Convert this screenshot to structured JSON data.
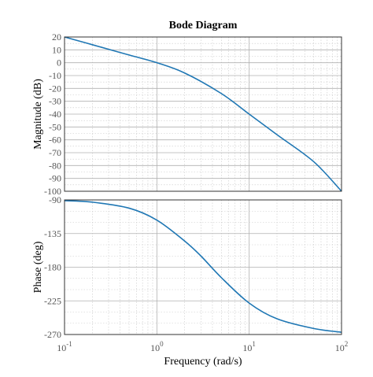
{
  "chart_data": {
    "type": "line",
    "title": "Bode Diagram",
    "xlabel": "Frequency  (rad/s)",
    "xscale": "log",
    "xlim": [
      0.1,
      100
    ],
    "x_ticks": [
      {
        "base": "10",
        "exp": "-1",
        "value": 0.1
      },
      {
        "base": "10",
        "exp": "0",
        "value": 1
      },
      {
        "base": "10",
        "exp": "1",
        "value": 10
      },
      {
        "base": "10",
        "exp": "2",
        "value": 100
      }
    ],
    "grid": true,
    "color": "#1f77b4",
    "panels": [
      {
        "ylabel": "Magnitude (dB)",
        "ylim": [
          -100,
          20
        ],
        "yticks": [
          "20",
          "10",
          "0",
          "-10",
          "-20",
          "-30",
          "-40",
          "-50",
          "-60",
          "-70",
          "-80",
          "-90",
          "-100"
        ],
        "x": [
          0.1,
          0.2,
          0.5,
          1,
          2,
          5,
          10,
          20,
          50,
          100
        ],
        "values": [
          20,
          14,
          6,
          0,
          -8,
          -24,
          -40,
          -56,
          -77,
          -100
        ]
      },
      {
        "ylabel": "Phase (deg)",
        "ylim": [
          -270,
          -90
        ],
        "yticks": [
          "-90",
          "-135",
          "-180",
          "-225",
          "-270"
        ],
        "x": [
          0.1,
          0.2,
          0.5,
          1,
          2,
          3,
          5,
          10,
          20,
          50,
          100
        ],
        "values": [
          -91,
          -93,
          -101,
          -117,
          -145,
          -165,
          -194,
          -228,
          -249,
          -262,
          -267
        ]
      }
    ]
  }
}
